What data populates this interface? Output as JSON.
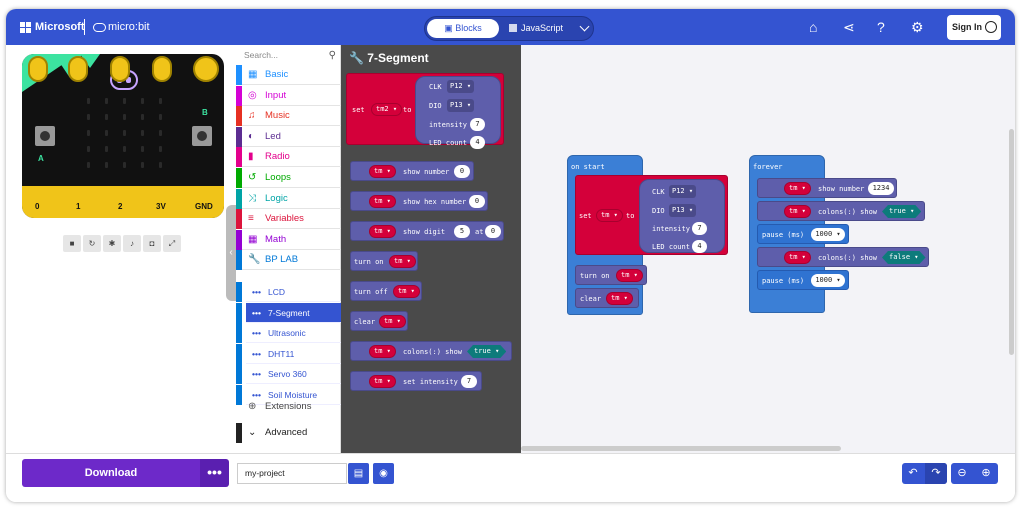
{
  "header": {
    "brand": "Microsoft",
    "product": "micro:bit",
    "tabs": [
      {
        "label": "Blocks"
      },
      {
        "label": "JavaScript"
      }
    ],
    "sign_in": "Sign In",
    "color": "#3454d1"
  },
  "simulator": {
    "pins": [
      "0",
      "1",
      "2",
      "3V",
      "GND"
    ],
    "buttons": [
      "A",
      "B"
    ],
    "controls": [
      "stop-icon",
      "restart-icon",
      "debug-icon",
      "mute-icon",
      "screenshot-icon",
      "fullscreen-icon"
    ]
  },
  "toolbox": {
    "search_placeholder": "Search...",
    "categories": [
      {
        "label": "Basic",
        "color": "#1e90ff"
      },
      {
        "label": "Input",
        "color": "#d400d4"
      },
      {
        "label": "Music",
        "color": "#e63022"
      },
      {
        "label": "Led",
        "color": "#5c2d91"
      },
      {
        "label": "Radio",
        "color": "#e3008c"
      },
      {
        "label": "Loops",
        "color": "#00aa00"
      },
      {
        "label": "Logic",
        "color": "#00a4a6"
      },
      {
        "label": "Variables",
        "color": "#dc143c"
      },
      {
        "label": "Math",
        "color": "#9400d3"
      },
      {
        "label": "BP LAB",
        "color": "#0078d7"
      }
    ],
    "subcategories": [
      {
        "label": "LCD"
      },
      {
        "label": "7-Segment"
      },
      {
        "label": "Ultrasonic"
      },
      {
        "label": "DHT11"
      },
      {
        "label": "Servo 360"
      },
      {
        "label": "Soil Moisture"
      }
    ],
    "extensions": "Extensions",
    "advanced": "Advanced"
  },
  "flyout": {
    "title": "7-Segment",
    "set_block": {
      "set": "set",
      "var": "tm2",
      "to": "to",
      "clk_label": "CLK",
      "clk": "P12",
      "dio_label": "DIO",
      "dio": "P13",
      "intensity_label": "intensity",
      "intensity": "7",
      "led_label": "LED count",
      "led": "4"
    },
    "blocks": [
      {
        "var": "tm",
        "text": "show number",
        "value": "0"
      },
      {
        "var": "tm",
        "text": "show hex number",
        "value": "0"
      },
      {
        "var": "tm",
        "text": "show digit",
        "value": "5",
        "at": "at",
        "value2": "0"
      },
      {
        "prefix": "turn on",
        "var": "tm"
      },
      {
        "prefix": "turn off",
        "var": "tm"
      },
      {
        "prefix": "clear",
        "var": "tm"
      },
      {
        "var": "tm",
        "text": "colons(:) show",
        "bool": "true"
      },
      {
        "var": "tm",
        "text": "set intensity",
        "value": "7"
      }
    ]
  },
  "workspace": {
    "on_start": {
      "title": "on start",
      "set": "set",
      "var": "tm",
      "to": "to",
      "clk_label": "CLK",
      "clk": "P12",
      "dio_label": "DIO",
      "dio": "P13",
      "intensity_label": "intensity",
      "intensity": "7",
      "led_label": "LED count",
      "led": "4",
      "turn_on": "turn on",
      "turn_on_var": "tm",
      "clear": "clear",
      "clear_var": "tm"
    },
    "forever": {
      "title": "forever",
      "show_var": "tm",
      "show_text": "show number",
      "show_value": "1234",
      "colon1_var": "tm",
      "colon1_text": "colons(:) show",
      "colon1_bool": "true",
      "pause1": "pause (ms)",
      "pause1_value": "1000",
      "colon2_var": "tm",
      "colon2_text": "colons(:) show",
      "colon2_bool": "false",
      "pause2": "pause (ms)",
      "pause2_value": "1000"
    }
  },
  "footer": {
    "download": "Download",
    "project_name": "my-project"
  }
}
